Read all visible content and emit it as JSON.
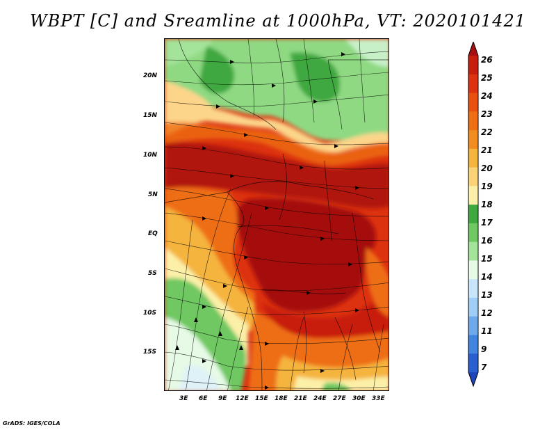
{
  "title": "WBPT [C] and Sreamline at 1000hPa, VT: 2020101421",
  "credit": "GrADS: IGES/COLA",
  "lat_labels": [
    "20N",
    "15N",
    "10N",
    "5N",
    "EQ",
    "5S",
    "10S",
    "15S"
  ],
  "lon_labels": [
    "3E",
    "6E",
    "9E",
    "12E",
    "15E",
    "18E",
    "21E",
    "24E",
    "27E",
    "30E",
    "33E"
  ],
  "colorbar": {
    "labels": [
      "26",
      "25",
      "24",
      "23",
      "22",
      "21",
      "20",
      "19",
      "18",
      "17",
      "16",
      "15",
      "14",
      "13",
      "12",
      "11",
      "9",
      "7"
    ],
    "colors": [
      "#a50f0f",
      "#c81e0c",
      "#dc3210",
      "#e8500f",
      "#ee6e14",
      "#f28c1e",
      "#f5b43c",
      "#fad278",
      "#fcf0a8",
      "#3fa83f",
      "#6fc862",
      "#a3e39a",
      "#e6fae6",
      "#c8e6fa",
      "#9fcdf5",
      "#6ea9ec",
      "#4185e0",
      "#2a5fd0",
      "#1f46b8"
    ]
  },
  "colors": {
    "deep_red": "#a50f0f",
    "red": "#c81e0c",
    "orange": "#ee6e14",
    "light_orange": "#f5b43c",
    "yellow": "#fcf0a8",
    "green": "#3fa83f",
    "light_green": "#8fd983",
    "pale_blue": "#e6fae6"
  }
}
